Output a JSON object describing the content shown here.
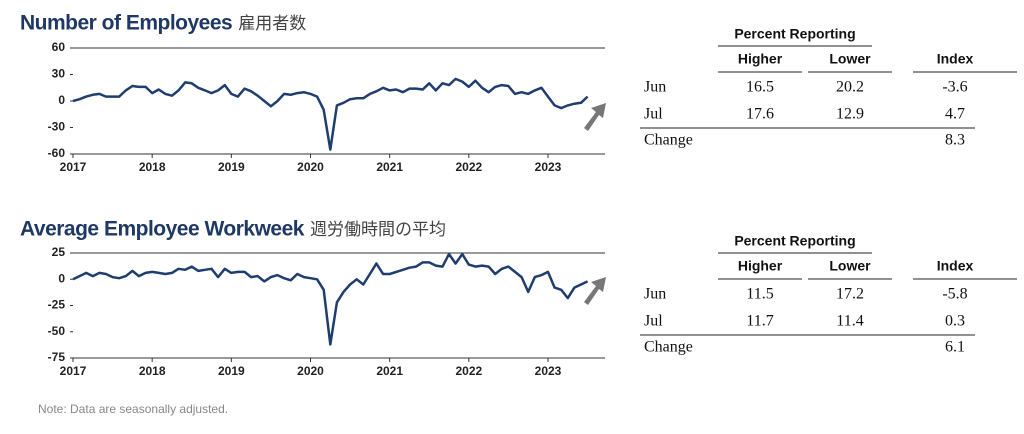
{
  "chart_data": [
    {
      "type": "line",
      "title": "Number of Employees",
      "title_ja": "雇用者数",
      "color": "#1f3d6e",
      "x": [
        2017,
        2017.083,
        2017.167,
        2017.25,
        2017.333,
        2017.417,
        2017.5,
        2017.583,
        2017.667,
        2017.75,
        2017.833,
        2017.917,
        2018,
        2018.083,
        2018.167,
        2018.25,
        2018.333,
        2018.417,
        2018.5,
        2018.583,
        2018.667,
        2018.75,
        2018.833,
        2018.917,
        2019,
        2019.083,
        2019.167,
        2019.25,
        2019.333,
        2019.417,
        2019.5,
        2019.583,
        2019.667,
        2019.75,
        2019.833,
        2019.917,
        2020,
        2020.083,
        2020.167,
        2020.25,
        2020.333,
        2020.417,
        2020.5,
        2020.583,
        2020.667,
        2020.75,
        2020.833,
        2020.917,
        2021,
        2021.083,
        2021.167,
        2021.25,
        2021.333,
        2021.417,
        2021.5,
        2021.583,
        2021.667,
        2021.75,
        2021.833,
        2021.917,
        2022,
        2022.083,
        2022.167,
        2022.25,
        2022.333,
        2022.417,
        2022.5,
        2022.583,
        2022.667,
        2022.75,
        2022.833,
        2022.917,
        2023,
        2023.083,
        2023.167,
        2023.25,
        2023.333,
        2023.417,
        2023.5
      ],
      "values": [
        0,
        2,
        5,
        7,
        8,
        5,
        5,
        5,
        12,
        17,
        16,
        16,
        9,
        13,
        8,
        6,
        12,
        21,
        20,
        15,
        12,
        9,
        12,
        18,
        8,
        5,
        14,
        11,
        6,
        0,
        -6,
        0,
        8,
        7,
        9,
        10,
        8,
        5,
        -10,
        -55,
        -5,
        -2,
        2,
        3,
        3,
        8,
        11,
        15,
        12,
        13,
        10,
        14,
        14,
        13,
        20,
        12,
        20,
        18,
        25,
        22,
        16,
        23,
        15,
        10,
        16,
        18,
        17,
        8,
        10,
        8,
        12,
        15,
        5,
        -5,
        -8,
        -5,
        -3,
        -2,
        5
      ],
      "xlim": [
        2017,
        2023.72
      ],
      "xticks": [
        2017,
        2018,
        2019,
        2020,
        2021,
        2022,
        2023
      ],
      "ylim": [
        -60,
        60
      ],
      "yticks": [
        -60,
        -30,
        0,
        30,
        60
      ]
    },
    {
      "type": "line",
      "title": "Average Employee Workweek",
      "title_ja": "週労働時間の平均",
      "color": "#1f3d6e",
      "x": [
        2017,
        2017.083,
        2017.167,
        2017.25,
        2017.333,
        2017.417,
        2017.5,
        2017.583,
        2017.667,
        2017.75,
        2017.833,
        2017.917,
        2018,
        2018.083,
        2018.167,
        2018.25,
        2018.333,
        2018.417,
        2018.5,
        2018.583,
        2018.667,
        2018.75,
        2018.833,
        2018.917,
        2019,
        2019.083,
        2019.167,
        2019.25,
        2019.333,
        2019.417,
        2019.5,
        2019.583,
        2019.667,
        2019.75,
        2019.833,
        2019.917,
        2020,
        2020.083,
        2020.167,
        2020.25,
        2020.333,
        2020.417,
        2020.5,
        2020.583,
        2020.667,
        2020.75,
        2020.833,
        2020.917,
        2021,
        2021.083,
        2021.167,
        2021.25,
        2021.333,
        2021.417,
        2021.5,
        2021.583,
        2021.667,
        2021.75,
        2021.833,
        2021.917,
        2022,
        2022.083,
        2022.167,
        2022.25,
        2022.333,
        2022.417,
        2022.5,
        2022.583,
        2022.667,
        2022.75,
        2022.833,
        2022.917,
        2023,
        2023.083,
        2023.167,
        2023.25,
        2023.333,
        2023.417,
        2023.5
      ],
      "values": [
        0,
        3,
        6,
        3,
        6,
        5,
        2,
        1,
        3,
        8,
        3,
        6,
        7,
        6,
        5,
        6,
        10,
        9,
        12,
        8,
        9,
        10,
        2,
        10,
        6,
        7,
        7,
        2,
        3,
        -2,
        2,
        4,
        1,
        -1,
        5,
        2,
        1,
        0,
        -10,
        -62,
        -22,
        -12,
        -5,
        0,
        -5,
        5,
        15,
        5,
        5,
        7,
        9,
        11,
        12,
        16,
        16,
        13,
        12,
        24,
        15,
        24,
        14,
        12,
        13,
        12,
        5,
        10,
        12,
        7,
        2,
        -12,
        2,
        4,
        7,
        -8,
        -10,
        -18,
        -8,
        -5,
        -2
      ],
      "xlim": [
        2017,
        2023.72
      ],
      "xticks": [
        2017,
        2018,
        2019,
        2020,
        2021,
        2022,
        2023
      ],
      "ylim": [
        -75,
        25
      ],
      "yticks": [
        -75,
        -50,
        -25,
        0,
        25
      ]
    }
  ],
  "tables": [
    {
      "group_header": "Percent Reporting",
      "columns": [
        "Higher",
        "Lower",
        "Index"
      ],
      "rows": [
        {
          "label": "Jun",
          "higher": "16.5",
          "lower": "20.2",
          "index": "-3.6"
        },
        {
          "label": "Jul",
          "higher": "17.6",
          "lower": "12.9",
          "index": "4.7"
        }
      ],
      "change": {
        "label": "Change",
        "index": "8.3"
      }
    },
    {
      "group_header": "Percent Reporting",
      "columns": [
        "Higher",
        "Lower",
        "Index"
      ],
      "rows": [
        {
          "label": "Jun",
          "higher": "11.5",
          "lower": "17.2",
          "index": "-5.8"
        },
        {
          "label": "Jul",
          "higher": "11.7",
          "lower": "11.4",
          "index": "0.3"
        }
      ],
      "change": {
        "label": "Change",
        "index": "6.1"
      }
    }
  ],
  "note": "Note: Data are seasonally adjusted."
}
